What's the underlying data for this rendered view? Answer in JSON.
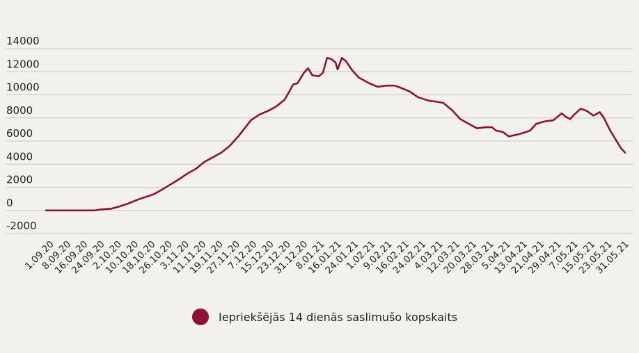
{
  "colors": {
    "background": "#f3f1ec",
    "series": "#8e1237",
    "grid": "#c9c6c0"
  },
  "legend": {
    "label": "Iepriekšējās 14 dienās saslimušo kopskaits"
  },
  "chart_data": {
    "type": "line",
    "ylim": [
      -2000,
      14000
    ],
    "yticks": [
      14000,
      12000,
      10000,
      8000,
      6000,
      4000,
      2000,
      0,
      -2000
    ],
    "grid": true,
    "legend_position": "bottom",
    "xtick_labels": [
      "1.09.20",
      "8.09.20",
      "16.09.20",
      "24.09.20",
      "2.10.20",
      "10.10.20",
      "18.10.20",
      "26.10.20",
      "3.11.20",
      "11.11.20",
      "19.11.20",
      "27.11.20",
      "7.12.20",
      "15.12.20",
      "23.12.20",
      "31.12.20",
      "8.01.21",
      "16.01.21",
      "24.01.21",
      "1.02.21",
      "9.02.21",
      "16.02.21",
      "24.02.21",
      "4.03.21",
      "12.03.21",
      "20.03.21",
      "28.03.21",
      "5.04.21",
      "13.04.21",
      "21.04.21",
      "29.04.21",
      "7.05.21",
      "15.05.21",
      "23.05.21",
      "31.05.21"
    ],
    "series": [
      {
        "name": "Iepriekšējās 14 dienās saslimušo kopskaits",
        "points": [
          [
            "2020-09-01",
            0
          ],
          [
            "2020-09-08",
            0
          ],
          [
            "2020-09-16",
            0
          ],
          [
            "2020-09-24",
            0
          ],
          [
            "2020-09-27",
            80
          ],
          [
            "2020-10-02",
            150
          ],
          [
            "2020-10-06",
            350
          ],
          [
            "2020-10-10",
            600
          ],
          [
            "2020-10-14",
            900
          ],
          [
            "2020-10-18",
            1150
          ],
          [
            "2020-10-22",
            1400
          ],
          [
            "2020-10-26",
            1800
          ],
          [
            "2020-10-30",
            2250
          ],
          [
            "2020-11-03",
            2700
          ],
          [
            "2020-11-07",
            3200
          ],
          [
            "2020-11-11",
            3600
          ],
          [
            "2020-11-15",
            4200
          ],
          [
            "2020-11-19",
            4600
          ],
          [
            "2020-11-23",
            5000
          ],
          [
            "2020-11-27",
            5600
          ],
          [
            "2020-12-01",
            6400
          ],
          [
            "2020-12-04",
            7100
          ],
          [
            "2020-12-07",
            7800
          ],
          [
            "2020-12-11",
            8300
          ],
          [
            "2020-12-15",
            8600
          ],
          [
            "2020-12-19",
            9000
          ],
          [
            "2020-12-23",
            9600
          ],
          [
            "2020-12-27",
            10900
          ],
          [
            "2020-12-29",
            11000
          ],
          [
            "2021-01-01",
            11900
          ],
          [
            "2021-01-03",
            12300
          ],
          [
            "2021-01-05",
            11700
          ],
          [
            "2021-01-08",
            11600
          ],
          [
            "2021-01-10",
            11900
          ],
          [
            "2021-01-12",
            13200
          ],
          [
            "2021-01-14",
            13100
          ],
          [
            "2021-01-16",
            12800
          ],
          [
            "2021-01-17",
            12200
          ],
          [
            "2021-01-19",
            13200
          ],
          [
            "2021-01-21",
            12900
          ],
          [
            "2021-01-24",
            12100
          ],
          [
            "2021-01-27",
            11500
          ],
          [
            "2021-02-01",
            11000
          ],
          [
            "2021-02-05",
            10700
          ],
          [
            "2021-02-09",
            10800
          ],
          [
            "2021-02-13",
            10800
          ],
          [
            "2021-02-16",
            10600
          ],
          [
            "2021-02-20",
            10300
          ],
          [
            "2021-02-24",
            9800
          ],
          [
            "2021-03-01",
            9500
          ],
          [
            "2021-03-05",
            9400
          ],
          [
            "2021-03-08",
            9300
          ],
          [
            "2021-03-12",
            8700
          ],
          [
            "2021-03-16",
            7900
          ],
          [
            "2021-03-20",
            7500
          ],
          [
            "2021-03-24",
            7100
          ],
          [
            "2021-03-28",
            7200
          ],
          [
            "2021-03-31",
            7200
          ],
          [
            "2021-04-02",
            6900
          ],
          [
            "2021-04-05",
            6800
          ],
          [
            "2021-04-08",
            6400
          ],
          [
            "2021-04-13",
            6600
          ],
          [
            "2021-04-18",
            6900
          ],
          [
            "2021-04-21",
            7500
          ],
          [
            "2021-04-25",
            7700
          ],
          [
            "2021-04-29",
            7800
          ],
          [
            "2021-05-03",
            8400
          ],
          [
            "2021-05-05",
            8100
          ],
          [
            "2021-05-07",
            7900
          ],
          [
            "2021-05-09",
            8300
          ],
          [
            "2021-05-12",
            8800
          ],
          [
            "2021-05-15",
            8600
          ],
          [
            "2021-05-18",
            8200
          ],
          [
            "2021-05-21",
            8500
          ],
          [
            "2021-05-23",
            8000
          ],
          [
            "2021-05-26",
            6900
          ],
          [
            "2021-05-28",
            6300
          ],
          [
            "2021-05-31",
            5400
          ],
          [
            "2021-06-02",
            5000
          ]
        ]
      }
    ]
  }
}
